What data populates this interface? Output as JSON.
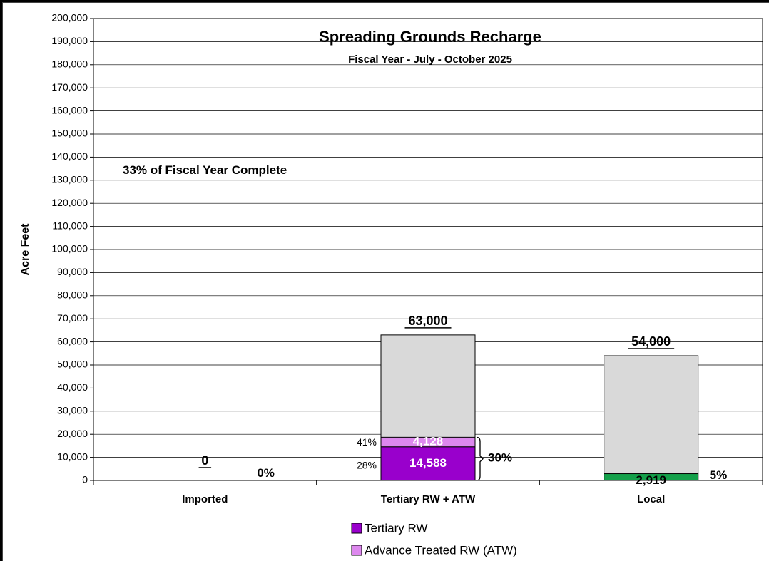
{
  "chart_data": {
    "type": "bar",
    "title": "Spreading Grounds Recharge",
    "subtitle": "Fiscal Year - July - October 2025",
    "ylabel": "Acre Feet",
    "ylim": [
      0,
      200000
    ],
    "y_ticks": [
      "0",
      "10,000",
      "20,000",
      "30,000",
      "40,000",
      "50,000",
      "60,000",
      "70,000",
      "80,000",
      "90,000",
      "100,000",
      "110,000",
      "120,000",
      "130,000",
      "140,000",
      "150,000",
      "160,000",
      "170,000",
      "180,000",
      "190,000",
      "200,000"
    ],
    "categories": [
      "Imported",
      "Tertiary RW + ATW",
      "Local"
    ],
    "annotation": "33% of Fiscal Year Complete",
    "goals": [
      0,
      63000,
      54000
    ],
    "goal_labels": [
      "0",
      "63,000",
      "54,000"
    ],
    "percent_labels": [
      "0%",
      "30%",
      "5%"
    ],
    "series": [
      {
        "name": "Tertiary RW",
        "values": [
          0,
          14588,
          0
        ],
        "color": "#9900CC"
      },
      {
        "name": "Advance Treated RW (ATW)",
        "values": [
          0,
          4128,
          0
        ],
        "color": "#DD88EE"
      },
      {
        "name": "",
        "values": [
          0,
          0,
          2919
        ],
        "color": "#14A04A"
      }
    ],
    "segment_labels": {
      "tertiary": "14,588",
      "atw": "4,128",
      "local": "2,919",
      "imported": "-"
    },
    "tertiary_segment_pcts": [
      "28%",
      "41%"
    ],
    "remaining_color": "#D9D9D9",
    "grid": true,
    "legend_placement": "bottom"
  }
}
